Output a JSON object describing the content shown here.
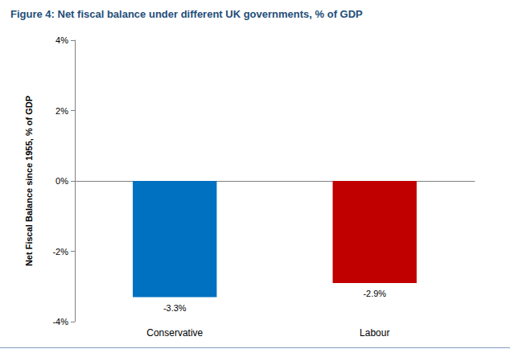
{
  "chart_data": {
    "type": "bar",
    "title": "Figure 4: Net fiscal balance under different UK governments, % of GDP",
    "y_label": "Net Fiscal Balance since 1955, % of GDP",
    "categories": [
      "Conservative",
      "Labour"
    ],
    "values": [
      -3.3,
      -2.9
    ],
    "value_labels": [
      "-3.3%",
      "-2.9%"
    ],
    "colors": [
      "#0070c0",
      "#c00000"
    ],
    "ylim": [
      -4,
      4
    ],
    "yticks": [
      {
        "value": -4,
        "label": "-4%"
      },
      {
        "value": -2,
        "label": "-2%"
      },
      {
        "value": 0,
        "label": "0%"
      },
      {
        "value": 2,
        "label": "2%"
      },
      {
        "value": 4,
        "label": "4%"
      }
    ],
    "grid": false,
    "data_labels": true
  }
}
